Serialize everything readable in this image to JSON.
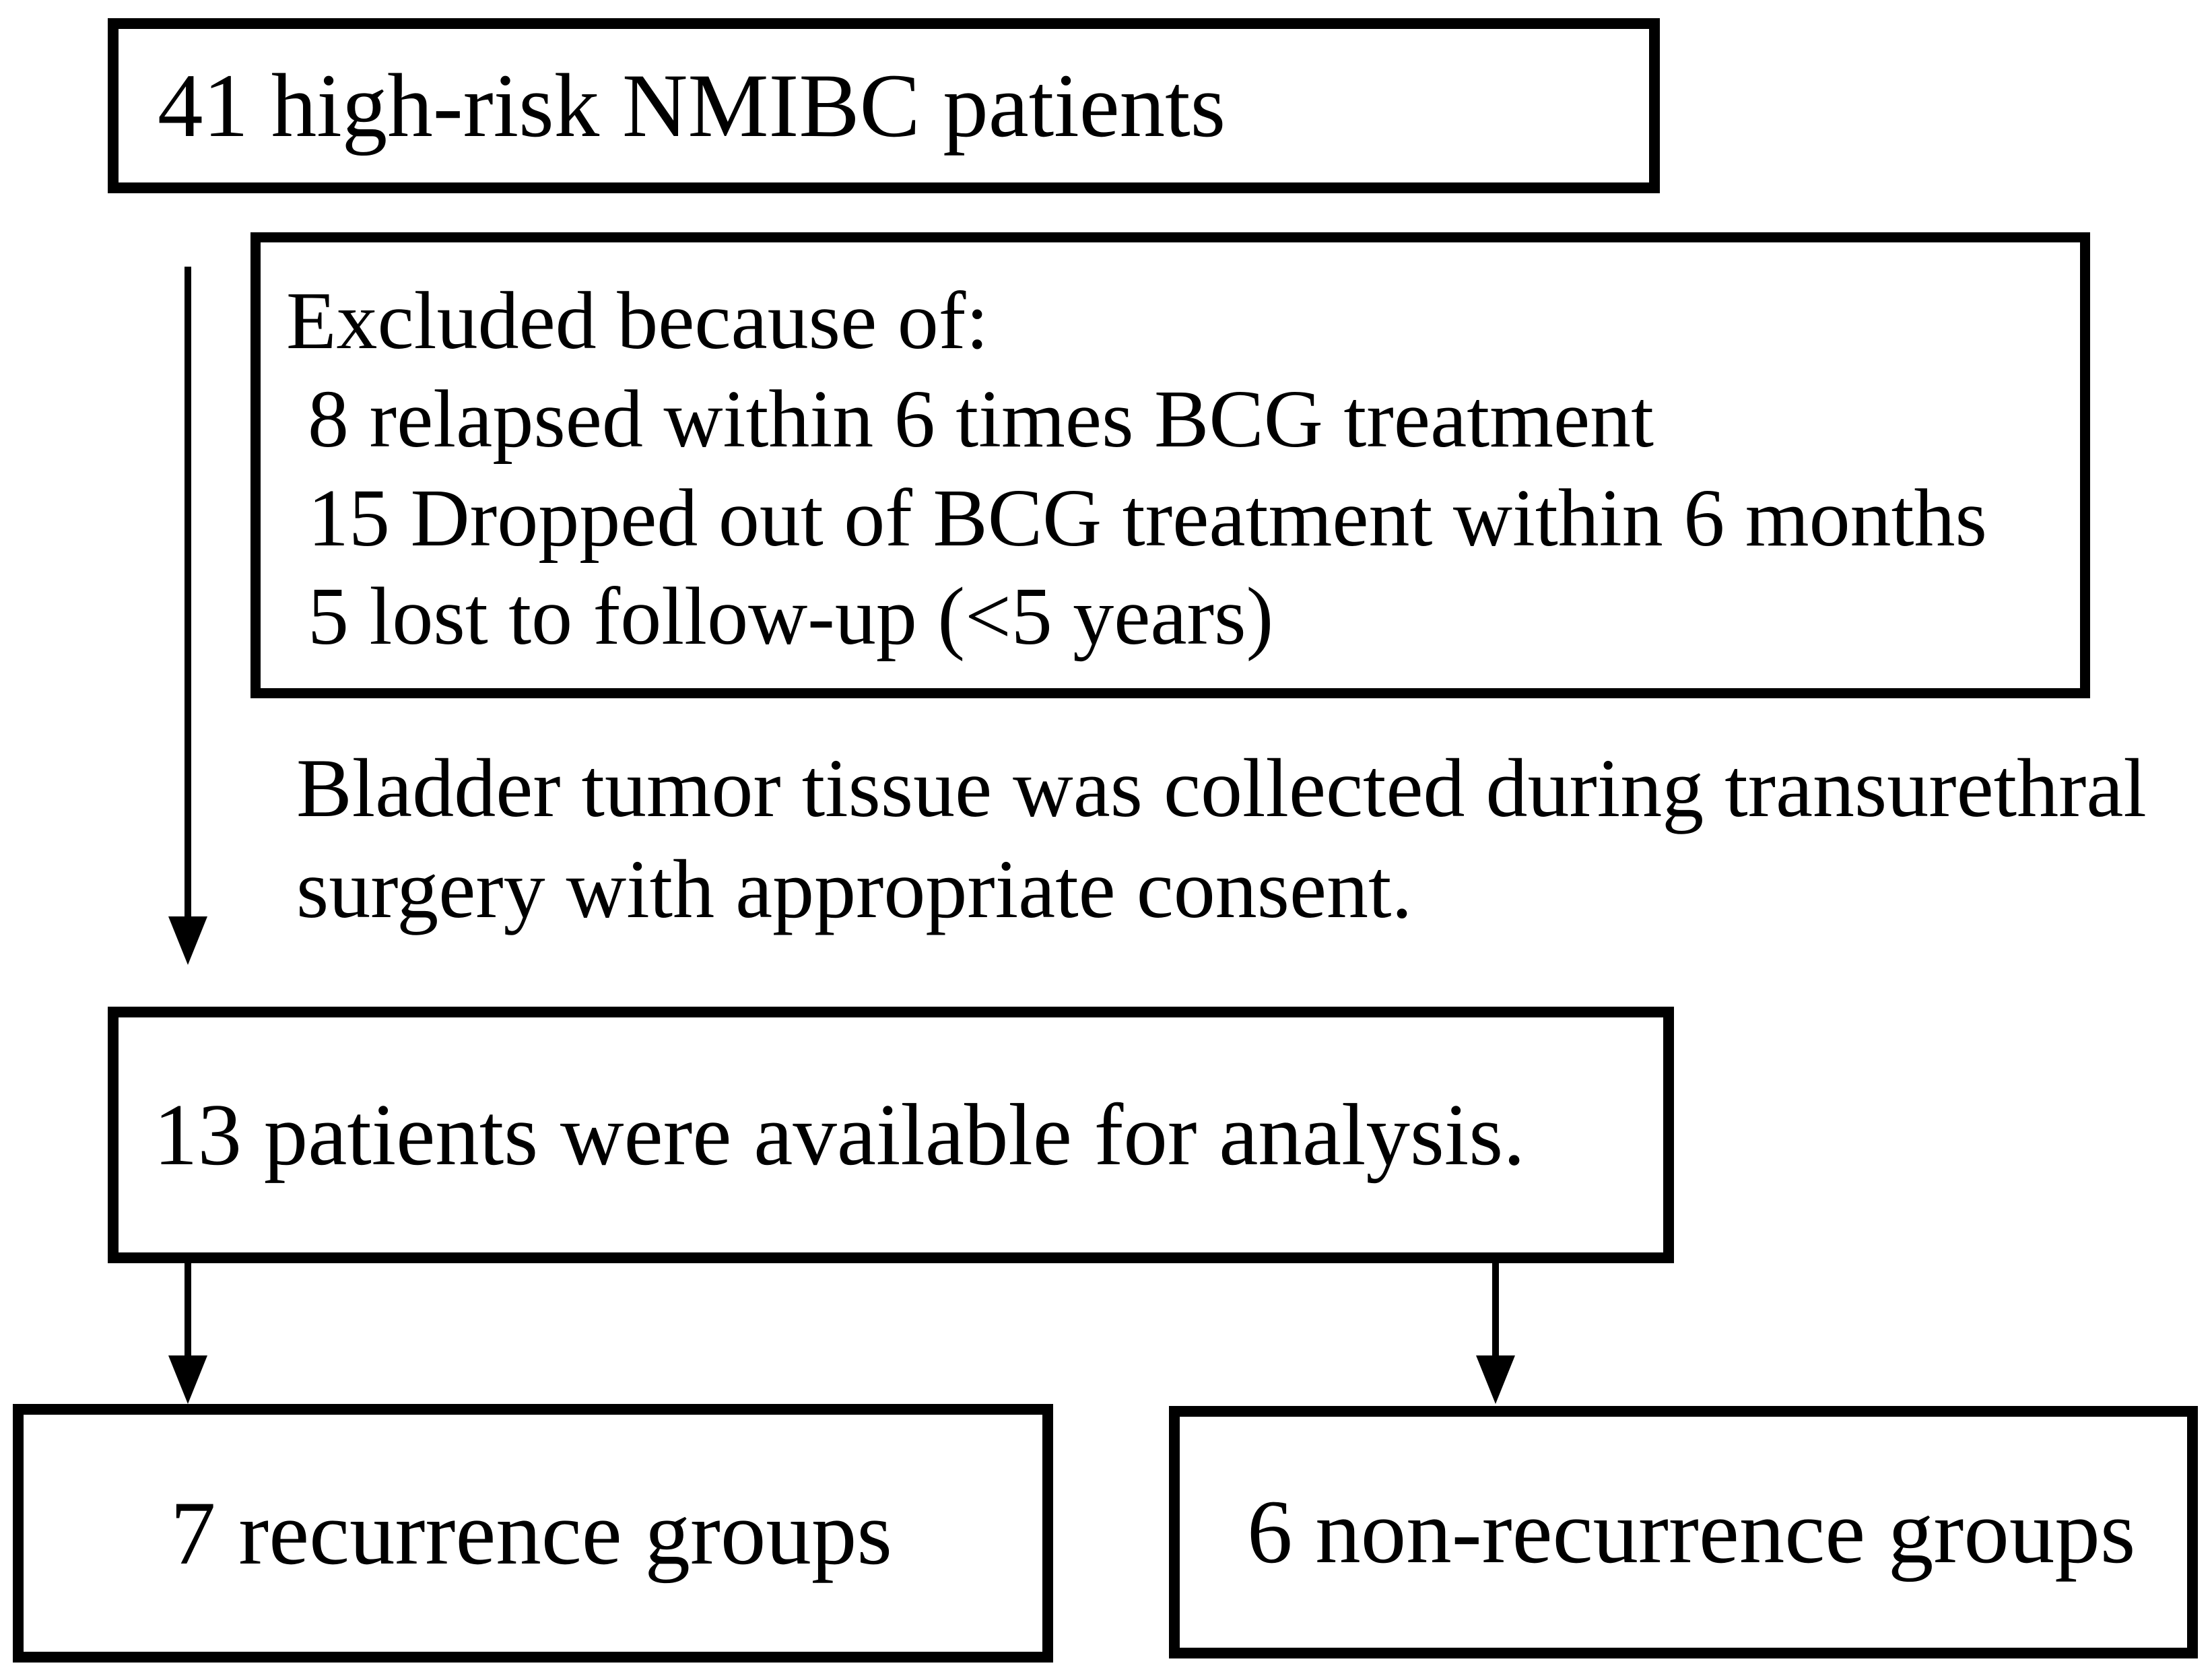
{
  "diagram": {
    "colors": {
      "background": "#ffffff",
      "line": "#000000",
      "text": "#000000"
    },
    "nodes": {
      "initial": {
        "label": "41 high-risk NMIBC patients"
      },
      "excluded": {
        "heading": "Excluded because of:",
        "reasons": [
          "8 relapsed within 6 times BCG treatment",
          "15 Dropped out of BCG treatment within 6 months",
          "5 lost to follow-up (<5 years)"
        ]
      },
      "note": {
        "line1": "Bladder tumor tissue was collected during transurethral",
        "line2": "surgery with appropriate consent."
      },
      "available": {
        "label": "13 patients were available for analysis."
      },
      "recurrence": {
        "label": "7 recurrence groups"
      },
      "non_recurrence": {
        "label": "6 non-recurrence groups"
      }
    }
  }
}
